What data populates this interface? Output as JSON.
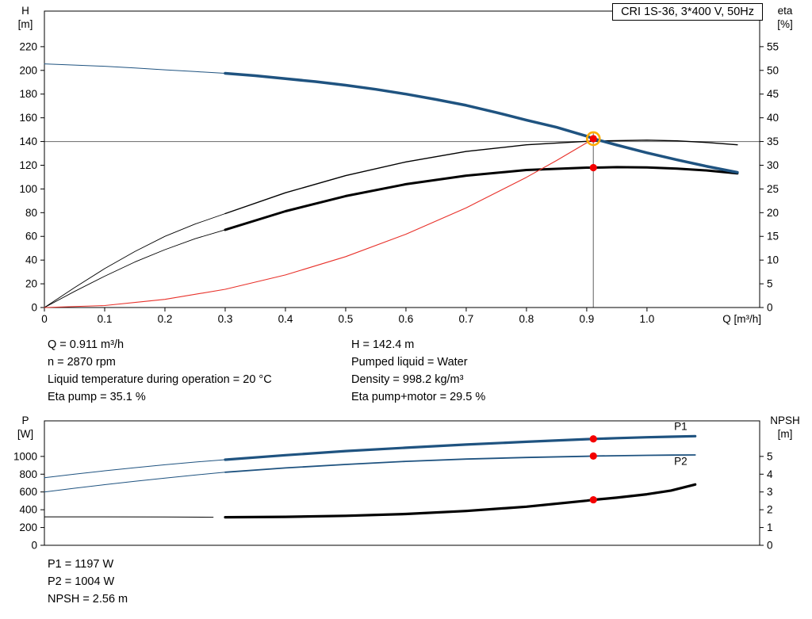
{
  "title_box": "CRI 1S-36, 3*400 V, 50Hz",
  "colors": {
    "curve_blue": "#1f5380",
    "curve_black": "#000000",
    "curve_red": "#e8312a",
    "marker_dot": "#f40000",
    "marker_ring": "#ffac00",
    "duty_line": "#7a7a7a",
    "curve_label": "#1f5fa6"
  },
  "info_top": {
    "col1": [
      "Q = 0.911 m³/h",
      "n = 2870 rpm",
      "Liquid temperature during operation = 20 °C",
      "Eta pump = 35.1 %"
    ],
    "col2": [
      "H = 142.4 m",
      "Pumped liquid = Water",
      "Density = 998.2 kg/m³",
      "Eta pump+motor = 29.5 %"
    ]
  },
  "info_bottom": [
    "P1 = 1197 W",
    "P2 = 1004 W",
    "NPSH = 2.56 m"
  ],
  "chart_data": [
    {
      "type": "line",
      "title": "CRI 1S-36, 3*400 V, 50Hz",
      "xlabel": "Q [m³/h]",
      "ylabel_left": [
        "H",
        "[m]"
      ],
      "ylabel_right": [
        "eta",
        "[%]"
      ],
      "xlim": [
        0,
        1.187
      ],
      "ylim_left": [
        0,
        250
      ],
      "ylim_right": [
        0,
        62.5
      ],
      "y_ticks_left": [
        0,
        20,
        40,
        60,
        80,
        100,
        120,
        140,
        160,
        180,
        200,
        220
      ],
      "y_ticks_right": [
        0,
        5,
        10,
        15,
        20,
        25,
        30,
        35,
        40,
        45,
        50,
        55
      ],
      "x_ticks": [
        {
          "v": 0,
          "label": "0"
        },
        {
          "v": 0.1,
          "label": "0.1"
        },
        {
          "v": 0.2,
          "label": "0.2"
        },
        {
          "v": 0.3,
          "label": "0.3"
        },
        {
          "v": 0.4,
          "label": "0.4"
        },
        {
          "v": 0.5,
          "label": "0.5"
        },
        {
          "v": 0.6,
          "label": "0.6"
        },
        {
          "v": 0.7,
          "label": "0.7"
        },
        {
          "v": 0.8,
          "label": "0.8"
        },
        {
          "v": 0.9,
          "label": "0.9"
        },
        {
          "v": 1,
          "label": "1.0"
        }
      ],
      "duty_h": 140,
      "duty_v": {
        "x": 0.911,
        "y_top": 148
      },
      "series": [
        {
          "name": "eta-pump-extension",
          "axis": "right",
          "color": "#000000",
          "width": 0.9,
          "points": [
            [
              0,
              0
            ],
            [
              0.05,
              4.2
            ],
            [
              0.1,
              8.2
            ],
            [
              0.15,
              11.8
            ],
            [
              0.2,
              15
            ],
            [
              0.25,
              17.6
            ],
            [
              0.3,
              19.8
            ]
          ]
        },
        {
          "name": "eta-pump",
          "axis": "right",
          "color": "#000000",
          "width": 1.4,
          "points": [
            [
              0.3,
              19.8
            ],
            [
              0.4,
              24.2
            ],
            [
              0.5,
              27.8
            ],
            [
              0.6,
              30.7
            ],
            [
              0.7,
              32.9
            ],
            [
              0.8,
              34.3
            ],
            [
              0.9,
              35.05
            ],
            [
              0.911,
              35.1
            ],
            [
              1.0,
              35.3
            ],
            [
              1.05,
              35.15
            ],
            [
              1.1,
              34.8
            ],
            [
              1.15,
              34.3
            ]
          ]
        },
        {
          "name": "eta-pump-motor-extension",
          "axis": "right",
          "color": "#000000",
          "width": 0.9,
          "points": [
            [
              0,
              0
            ],
            [
              0.05,
              3.4
            ],
            [
              0.1,
              6.6
            ],
            [
              0.15,
              9.6
            ],
            [
              0.2,
              12.2
            ],
            [
              0.25,
              14.5
            ],
            [
              0.3,
              16.4
            ]
          ]
        },
        {
          "name": "eta-pump-motor",
          "axis": "right",
          "color": "#000000",
          "width": 3,
          "points": [
            [
              0.3,
              16.4
            ],
            [
              0.4,
              20.3
            ],
            [
              0.5,
              23.5
            ],
            [
              0.6,
              26
            ],
            [
              0.7,
              27.8
            ],
            [
              0.8,
              29
            ],
            [
              0.9,
              29.5
            ],
            [
              0.911,
              29.5
            ],
            [
              0.95,
              29.6
            ],
            [
              1.0,
              29.55
            ],
            [
              1.05,
              29.3
            ],
            [
              1.1,
              28.9
            ],
            [
              1.15,
              28.3
            ]
          ]
        },
        {
          "name": "system-curve",
          "axis": "left",
          "color": "#e8312a",
          "width": 1.1,
          "points": [
            [
              0,
              0
            ],
            [
              0.1,
              1.7
            ],
            [
              0.2,
              6.9
            ],
            [
              0.3,
              15.4
            ],
            [
              0.4,
              27.5
            ],
            [
              0.5,
              42.9
            ],
            [
              0.6,
              61.8
            ],
            [
              0.7,
              84.1
            ],
            [
              0.8,
              109.8
            ],
            [
              0.85,
              124
            ],
            [
              0.9,
              139
            ],
            [
              0.911,
              142.4
            ]
          ]
        },
        {
          "name": "qh-extension",
          "axis": "left",
          "color": "#1f5380",
          "width": 1,
          "points": [
            [
              0,
              205.5
            ],
            [
              0.05,
              204.5
            ],
            [
              0.1,
              203.5
            ],
            [
              0.15,
              202
            ],
            [
              0.2,
              200.5
            ],
            [
              0.25,
              199
            ],
            [
              0.3,
              197.5
            ]
          ]
        },
        {
          "name": "qh-curve",
          "axis": "left",
          "color": "#1f5380",
          "width": 3.5,
          "points": [
            [
              0.3,
              197.5
            ],
            [
              0.35,
              195.5
            ],
            [
              0.4,
              193
            ],
            [
              0.45,
              190.5
            ],
            [
              0.5,
              187.5
            ],
            [
              0.55,
              184
            ],
            [
              0.6,
              180
            ],
            [
              0.65,
              175.5
            ],
            [
              0.7,
              170.5
            ],
            [
              0.75,
              164.5
            ],
            [
              0.8,
              158
            ],
            [
              0.85,
              152
            ],
            [
              0.9,
              144.5
            ],
            [
              0.911,
              142.4
            ],
            [
              0.95,
              137
            ],
            [
              1.0,
              130.5
            ],
            [
              1.05,
              124.5
            ],
            [
              1.1,
              119
            ],
            [
              1.15,
              114
            ]
          ]
        }
      ],
      "markers": [
        {
          "x": 0.911,
          "y": 142.4,
          "axis": "left",
          "ring": true
        },
        {
          "x": 0.911,
          "y": 29.5,
          "axis": "right",
          "ring": false
        }
      ]
    },
    {
      "type": "line",
      "title": "",
      "xlabel": "",
      "ylabel_left": [
        "P",
        "[W]"
      ],
      "ylabel_right": [
        "NPSH",
        "[m]"
      ],
      "xlim": [
        0,
        1.187
      ],
      "ylim_left": [
        0,
        1400
      ],
      "ylim_right": [
        0,
        7
      ],
      "y_ticks_left": [
        0,
        200,
        400,
        600,
        800,
        1000
      ],
      "y_ticks_right": [
        0,
        1,
        2,
        3,
        4,
        5
      ],
      "x_ticks": [],
      "series": [
        {
          "name": "npsh-extension",
          "axis": "right",
          "color": "#000000",
          "width": 1,
          "points": [
            [
              0,
              1.6
            ],
            [
              0.1,
              1.6
            ],
            [
              0.2,
              1.59
            ],
            [
              0.28,
              1.58
            ]
          ]
        },
        {
          "name": "npsh-curve",
          "axis": "right",
          "color": "#000000",
          "width": 3.2,
          "points": [
            [
              0.3,
              1.58
            ],
            [
              0.4,
              1.6
            ],
            [
              0.5,
              1.66
            ],
            [
              0.6,
              1.76
            ],
            [
              0.7,
              1.93
            ],
            [
              0.8,
              2.17
            ],
            [
              0.9,
              2.51
            ],
            [
              0.911,
              2.56
            ],
            [
              0.95,
              2.68
            ],
            [
              1.0,
              2.87
            ],
            [
              1.04,
              3.08
            ],
            [
              1.08,
              3.42
            ]
          ]
        },
        {
          "name": "p2-extension",
          "axis": "left",
          "color": "#1f5380",
          "width": 1,
          "points": [
            [
              0,
              600
            ],
            [
              0.05,
              642
            ],
            [
              0.1,
              682
            ],
            [
              0.15,
              720
            ],
            [
              0.2,
              756
            ],
            [
              0.25,
              790
            ],
            [
              0.3,
              822
            ]
          ]
        },
        {
          "name": "p2-curve",
          "axis": "left",
          "color": "#1f5380",
          "width": 1.8,
          "points": [
            [
              0.3,
              822
            ],
            [
              0.4,
              870
            ],
            [
              0.5,
              910
            ],
            [
              0.6,
              944
            ],
            [
              0.7,
              970
            ],
            [
              0.8,
              988
            ],
            [
              0.9,
              1001
            ],
            [
              0.911,
              1004
            ],
            [
              0.95,
              1008
            ],
            [
              1.0,
              1012
            ],
            [
              1.04,
              1015
            ],
            [
              1.08,
              1017
            ]
          ]
        },
        {
          "name": "p1-extension",
          "axis": "left",
          "color": "#1f5380",
          "width": 1,
          "points": [
            [
              0,
              760
            ],
            [
              0.05,
              800
            ],
            [
              0.1,
              838
            ],
            [
              0.15,
              873
            ],
            [
              0.2,
              906
            ],
            [
              0.25,
              936
            ],
            [
              0.3,
              963
            ]
          ]
        },
        {
          "name": "p1-curve",
          "axis": "left",
          "color": "#1f5380",
          "width": 3.2,
          "points": [
            [
              0.3,
              963
            ],
            [
              0.4,
              1014
            ],
            [
              0.5,
              1060
            ],
            [
              0.6,
              1098
            ],
            [
              0.7,
              1133
            ],
            [
              0.8,
              1165
            ],
            [
              0.9,
              1194
            ],
            [
              0.911,
              1197
            ],
            [
              0.95,
              1206
            ],
            [
              1.0,
              1215
            ],
            [
              1.04,
              1222
            ],
            [
              1.08,
              1228
            ]
          ]
        }
      ],
      "markers": [
        {
          "x": 0.911,
          "y": 1197,
          "axis": "left",
          "ring": false
        },
        {
          "x": 0.911,
          "y": 1004,
          "axis": "left",
          "ring": false
        },
        {
          "x": 0.911,
          "y": 2.56,
          "axis": "right",
          "ring": false
        }
      ],
      "curve_labels": [
        {
          "text": "P1",
          "x": 1.045,
          "y": 1298,
          "axis": "left"
        },
        {
          "text": "P2",
          "x": 1.045,
          "y": 905,
          "axis": "left"
        }
      ]
    }
  ]
}
